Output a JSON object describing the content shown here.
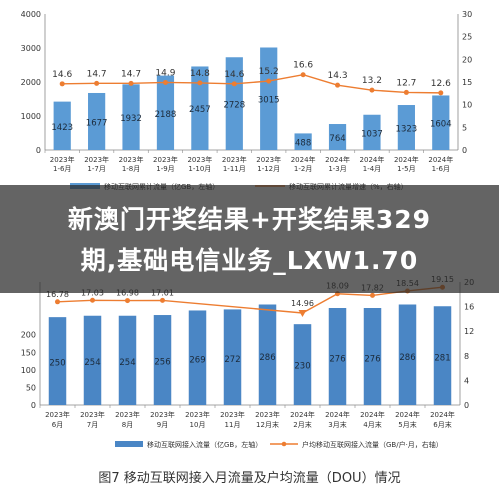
{
  "overlay": {
    "line1": "新澳门开奖结果+开奖结果329",
    "line2": "期,基础电信业务_LXW1.70"
  },
  "caption": "图7 移动互联网接入月流量及户均流量（DOU）情况",
  "colors": {
    "bar": "#5b9bd5",
    "line": "#ed7d31",
    "bar_dark": "#4a86c5",
    "overlay": "#2a2a2a"
  },
  "chart_data": [
    {
      "type": "bar",
      "categories": [
        "2023年\n1-6月",
        "2023年\n1-7月",
        "2023年\n1-8月",
        "2023年\n1-9月",
        "2023年\n1-10月",
        "2023年\n1-11月",
        "2023年\n1-12月",
        "2024年\n1-2月",
        "2024年\n1-3月",
        "2024年\n1-4月",
        "2024年\n1-5月",
        "2024年\n1-6月"
      ],
      "series": [
        {
          "name": "移动互联网累计流量（亿GB，左轴）",
          "axis": "left",
          "values": [
            1423,
            1677,
            1932,
            2188,
            2457,
            2728,
            3015,
            488,
            764,
            1037,
            1323,
            1604
          ]
        },
        {
          "name": "移动互联网累计流量增速（%，右轴）",
          "axis": "right",
          "type": "line",
          "values": [
            14.6,
            14.7,
            14.7,
            14.9,
            14.8,
            14.6,
            15.2,
            16.6,
            14.3,
            13.2,
            12.7,
            12.6
          ]
        }
      ],
      "ylim_left": [
        0,
        4000
      ],
      "yticks_left": [
        "0",
        "1000",
        "2000",
        "3000",
        "4000"
      ],
      "ylim_right": [
        0,
        30
      ],
      "yticks_right": [
        "0",
        "5",
        "10",
        "15",
        "20",
        "25",
        "30"
      ]
    },
    {
      "type": "bar",
      "categories": [
        "2023年\n6月",
        "2023年\n7月",
        "2023年\n8月",
        "2023年\n9月",
        "2023年\n10月",
        "2023年\n11月",
        "2023年\n12月末",
        "2024年\n2月末",
        "2024年\n3月末",
        "2024年\n4月末",
        "2024年\n5月末",
        "2024年\n6月末"
      ],
      "series": [
        {
          "name": "移动互联网接入流量（亿GB，左轴）",
          "axis": "left",
          "values": [
            250,
            254,
            254,
            256,
            269,
            272,
            286,
            230,
            276,
            276,
            286,
            281
          ]
        },
        {
          "name": "户均移动互联网接入流量（GB/户·月，右轴）",
          "axis": "right",
          "type": "line",
          "values": [
            16.78,
            17.03,
            16.98,
            17.01,
            null,
            null,
            null,
            14.96,
            18.09,
            17.82,
            18.54,
            19.15
          ],
          "labels": [
            "16.78",
            "17.03",
            "16.98",
            "17.01",
            "",
            "",
            "",
            "14.96",
            "18.09",
            "17.82",
            "18.54",
            "19.15"
          ]
        }
      ],
      "ylim_left": [
        0,
        350
      ],
      "ylim_right": [
        0,
        20
      ],
      "yticks_right": [
        "0",
        "4",
        "8",
        "12",
        "16",
        "20"
      ],
      "yticks_left_visible": [
        "0",
        "50",
        "100",
        "150",
        "200"
      ]
    }
  ]
}
